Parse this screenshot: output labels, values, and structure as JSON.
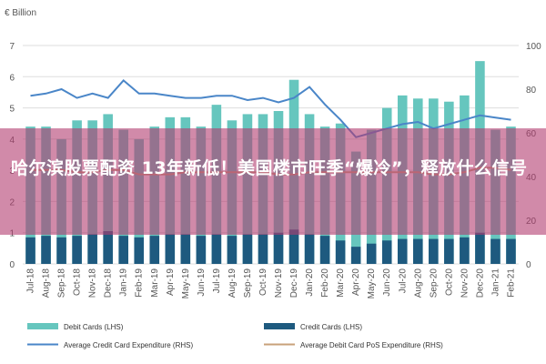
{
  "chart_data": {
    "type": "bar",
    "ylabel": "€ Billion",
    "ylim": [
      0,
      7
    ],
    "y2lim": [
      0,
      100
    ],
    "yticks": [
      0,
      1,
      2,
      3,
      4,
      5,
      6,
      7
    ],
    "y2ticks": [
      0,
      20,
      40,
      60,
      80,
      100
    ],
    "grid": true,
    "legend_position": "bottom",
    "categories": [
      "Jul-18",
      "Aug-18",
      "Sep-18",
      "Oct-18",
      "Nov-18",
      "Dec-18",
      "Jan-19",
      "Feb-19",
      "Mar-19",
      "Apr-19",
      "May-19",
      "Jun-19",
      "Jul-19",
      "Aug-19",
      "Sep-19",
      "Oct-19",
      "Nov-19",
      "Dec-19",
      "Jan-20",
      "Feb-20",
      "Mar-20",
      "Apr-20",
      "May-20",
      "Jun-20",
      "Jul-20",
      "Aug-20",
      "Sep-20",
      "Oct-20",
      "Nov-20",
      "Dec-20",
      "Jan-21",
      "Feb-21"
    ],
    "series": [
      {
        "name": "Debit Cards (LHS)",
        "kind": "bar",
        "axis": "left",
        "color": "#66c6be",
        "values": [
          4.4,
          4.4,
          4.0,
          4.6,
          4.6,
          4.8,
          4.3,
          4.0,
          4.4,
          4.7,
          4.7,
          4.4,
          5.1,
          4.6,
          4.8,
          4.8,
          4.9,
          5.9,
          4.8,
          4.4,
          4.5,
          3.6,
          4.3,
          5.0,
          5.4,
          5.3,
          5.3,
          5.2,
          5.4,
          6.5,
          4.3,
          4.4
        ]
      },
      {
        "name": "Credit Cards (LHS)",
        "kind": "bar",
        "axis": "left",
        "color": "#1e5a7f",
        "values": [
          0.85,
          0.9,
          0.85,
          0.9,
          0.95,
          1.05,
          0.9,
          0.85,
          0.9,
          0.95,
          0.95,
          0.9,
          0.95,
          0.9,
          0.95,
          0.95,
          1.0,
          1.1,
          0.95,
          0.9,
          0.75,
          0.55,
          0.65,
          0.75,
          0.8,
          0.8,
          0.8,
          0.8,
          0.85,
          1.0,
          0.8,
          0.8
        ]
      },
      {
        "name": "Average Credit Card Expenditure (RHS)",
        "kind": "line",
        "axis": "right",
        "color": "#4a86c8",
        "values": [
          77,
          78,
          80,
          76,
          78,
          76,
          84,
          78,
          78,
          77,
          76,
          76,
          77,
          77,
          75,
          76,
          74,
          76,
          81,
          73,
          66,
          58,
          60,
          62,
          64,
          65,
          62,
          64,
          66,
          68,
          67,
          66
        ]
      },
      {
        "name": "Average Debit Card PoS Expenditure (RHS)",
        "kind": "line",
        "axis": "right",
        "color": "#c8a27a",
        "values": [
          43,
          43,
          43,
          42,
          42,
          43,
          43,
          41,
          41,
          41,
          42,
          42,
          42,
          42,
          42,
          42,
          41,
          41,
          42,
          42,
          42,
          42,
          42,
          42,
          42,
          42,
          41,
          41,
          42,
          44,
          44,
          43
        ]
      }
    ]
  },
  "overlay": {
    "headline": "哈尔滨股票配资 13年新低！美国楼市旺季“爆冷”，释放什么信号"
  }
}
